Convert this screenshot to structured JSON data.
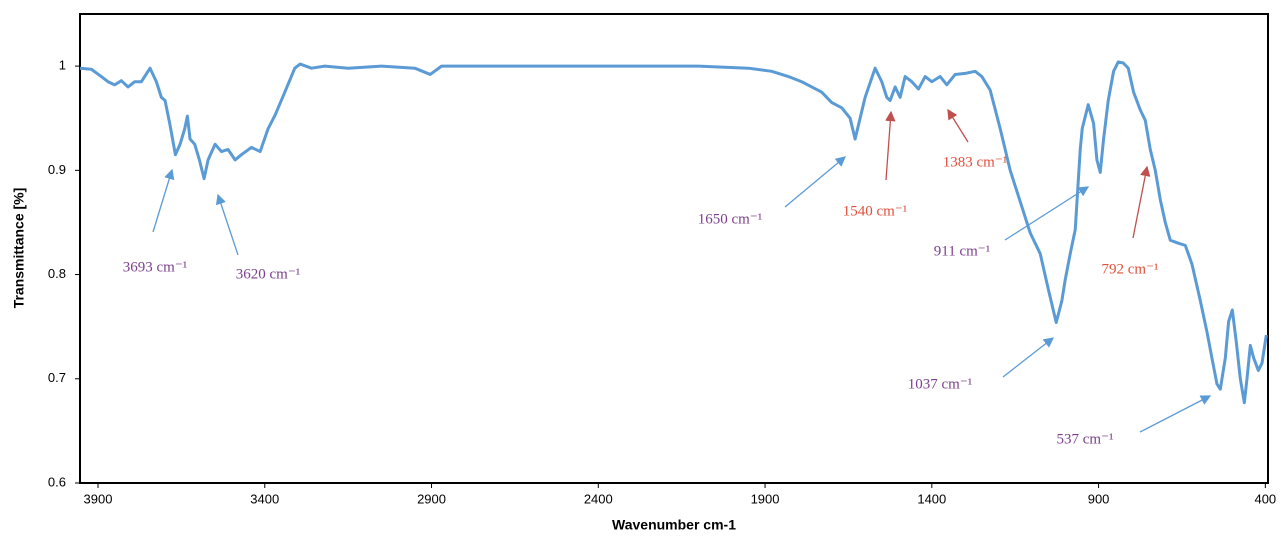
{
  "chart_data": {
    "type": "line",
    "xlabel": "Wavenumber cm-1",
    "ylabel": "Transmittance [%]",
    "xlim": [
      3954,
      392
    ],
    "xreversed": true,
    "xticks": [
      3900,
      3400,
      2900,
      2400,
      1900,
      1400,
      900,
      400
    ],
    "ylim": [
      0.6,
      1.05
    ],
    "yticks": [
      0.6,
      0.7,
      0.8,
      0.9,
      1
    ],
    "grid": false,
    "x": [
      3954,
      3920,
      3890,
      3870,
      3850,
      3830,
      3810,
      3790,
      3770,
      3744,
      3725,
      3710,
      3699,
      3685,
      3668,
      3654,
      3640,
      3632,
      3624,
      3610,
      3596,
      3582,
      3570,
      3549,
      3530,
      3510,
      3489,
      3470,
      3440,
      3414,
      3390,
      3369,
      3340,
      3310,
      3294,
      3260,
      3220,
      3150,
      3050,
      2950,
      2904,
      2870,
      2700,
      2400,
      2100,
      1950,
      1880,
      1830,
      1790,
      1760,
      1730,
      1700,
      1670,
      1645,
      1630,
      1615,
      1600,
      1570,
      1550,
      1535,
      1525,
      1510,
      1495,
      1480,
      1460,
      1440,
      1420,
      1400,
      1375,
      1355,
      1330,
      1300,
      1270,
      1250,
      1225,
      1195,
      1165,
      1135,
      1105,
      1075,
      1050,
      1027,
      1010,
      1000,
      985,
      970,
      955,
      949,
      931,
      915,
      905,
      895,
      885,
      871,
      855,
      841,
      826,
      811,
      795,
      775,
      760,
      745,
      730,
      715,
      700,
      685,
      660,
      640,
      620,
      595,
      575,
      559,
      545,
      535,
      520,
      510,
      499,
      487,
      475,
      463,
      455,
      445,
      435,
      421,
      410,
      397
    ],
    "series": [
      {
        "color": "#5b9bd5",
        "values": [
          0.998,
          0.997,
          0.99,
          0.985,
          0.982,
          0.986,
          0.98,
          0.985,
          0.985,
          0.998,
          0.985,
          0.97,
          0.967,
          0.945,
          0.915,
          0.925,
          0.94,
          0.952,
          0.93,
          0.925,
          0.91,
          0.892,
          0.91,
          0.925,
          0.918,
          0.92,
          0.91,
          0.915,
          0.922,
          0.918,
          0.94,
          0.953,
          0.975,
          0.998,
          1.002,
          0.998,
          1.0,
          0.998,
          1.0,
          0.998,
          0.992,
          1.0,
          1.0,
          1.0,
          1.0,
          0.998,
          0.995,
          0.99,
          0.985,
          0.98,
          0.975,
          0.965,
          0.96,
          0.95,
          0.93,
          0.95,
          0.97,
          0.998,
          0.985,
          0.97,
          0.967,
          0.98,
          0.97,
          0.99,
          0.985,
          0.978,
          0.99,
          0.985,
          0.99,
          0.982,
          0.992,
          0.993,
          0.995,
          0.99,
          0.977,
          0.94,
          0.9,
          0.87,
          0.84,
          0.82,
          0.785,
          0.754,
          0.775,
          0.795,
          0.82,
          0.843,
          0.92,
          0.94,
          0.963,
          0.945,
          0.91,
          0.898,
          0.93,
          0.967,
          0.995,
          1.004,
          1.003,
          0.998,
          0.975,
          0.958,
          0.948,
          0.92,
          0.9,
          0.872,
          0.85,
          0.833,
          0.83,
          0.828,
          0.81,
          0.775,
          0.745,
          0.718,
          0.695,
          0.69,
          0.72,
          0.755,
          0.766,
          0.735,
          0.7,
          0.677,
          0.7,
          0.732,
          0.72,
          0.708,
          0.715,
          0.742
        ]
      }
    ],
    "annotations": [
      {
        "text": "3693 cm⁻¹",
        "color": "#7b3f8c",
        "arrow_color": "#5b9bd5"
      },
      {
        "text": "3620 cm⁻¹",
        "color": "#7b3f8c",
        "arrow_color": "#5b9bd5"
      },
      {
        "text": "1650 cm⁻¹",
        "color": "#7b3f8c",
        "arrow_color": "#5b9bd5"
      },
      {
        "text": "1540 cm⁻¹",
        "color": "#e0503c",
        "arrow_color": "#c0504d"
      },
      {
        "text": "1383 cm⁻¹",
        "color": "#e0503c",
        "arrow_color": "#c0504d"
      },
      {
        "text": "911 cm⁻¹",
        "color": "#7b3f8c",
        "arrow_color": "#5b9bd5"
      },
      {
        "text": "1037 cm⁻¹",
        "color": "#7b3f8c",
        "arrow_color": "#5b9bd5"
      },
      {
        "text": "792 cm⁻¹",
        "color": "#e0503c",
        "arrow_color": "#c0504d"
      },
      {
        "text": "537 cm⁻¹",
        "color": "#7b3f8c",
        "arrow_color": "#5b9bd5"
      }
    ]
  }
}
